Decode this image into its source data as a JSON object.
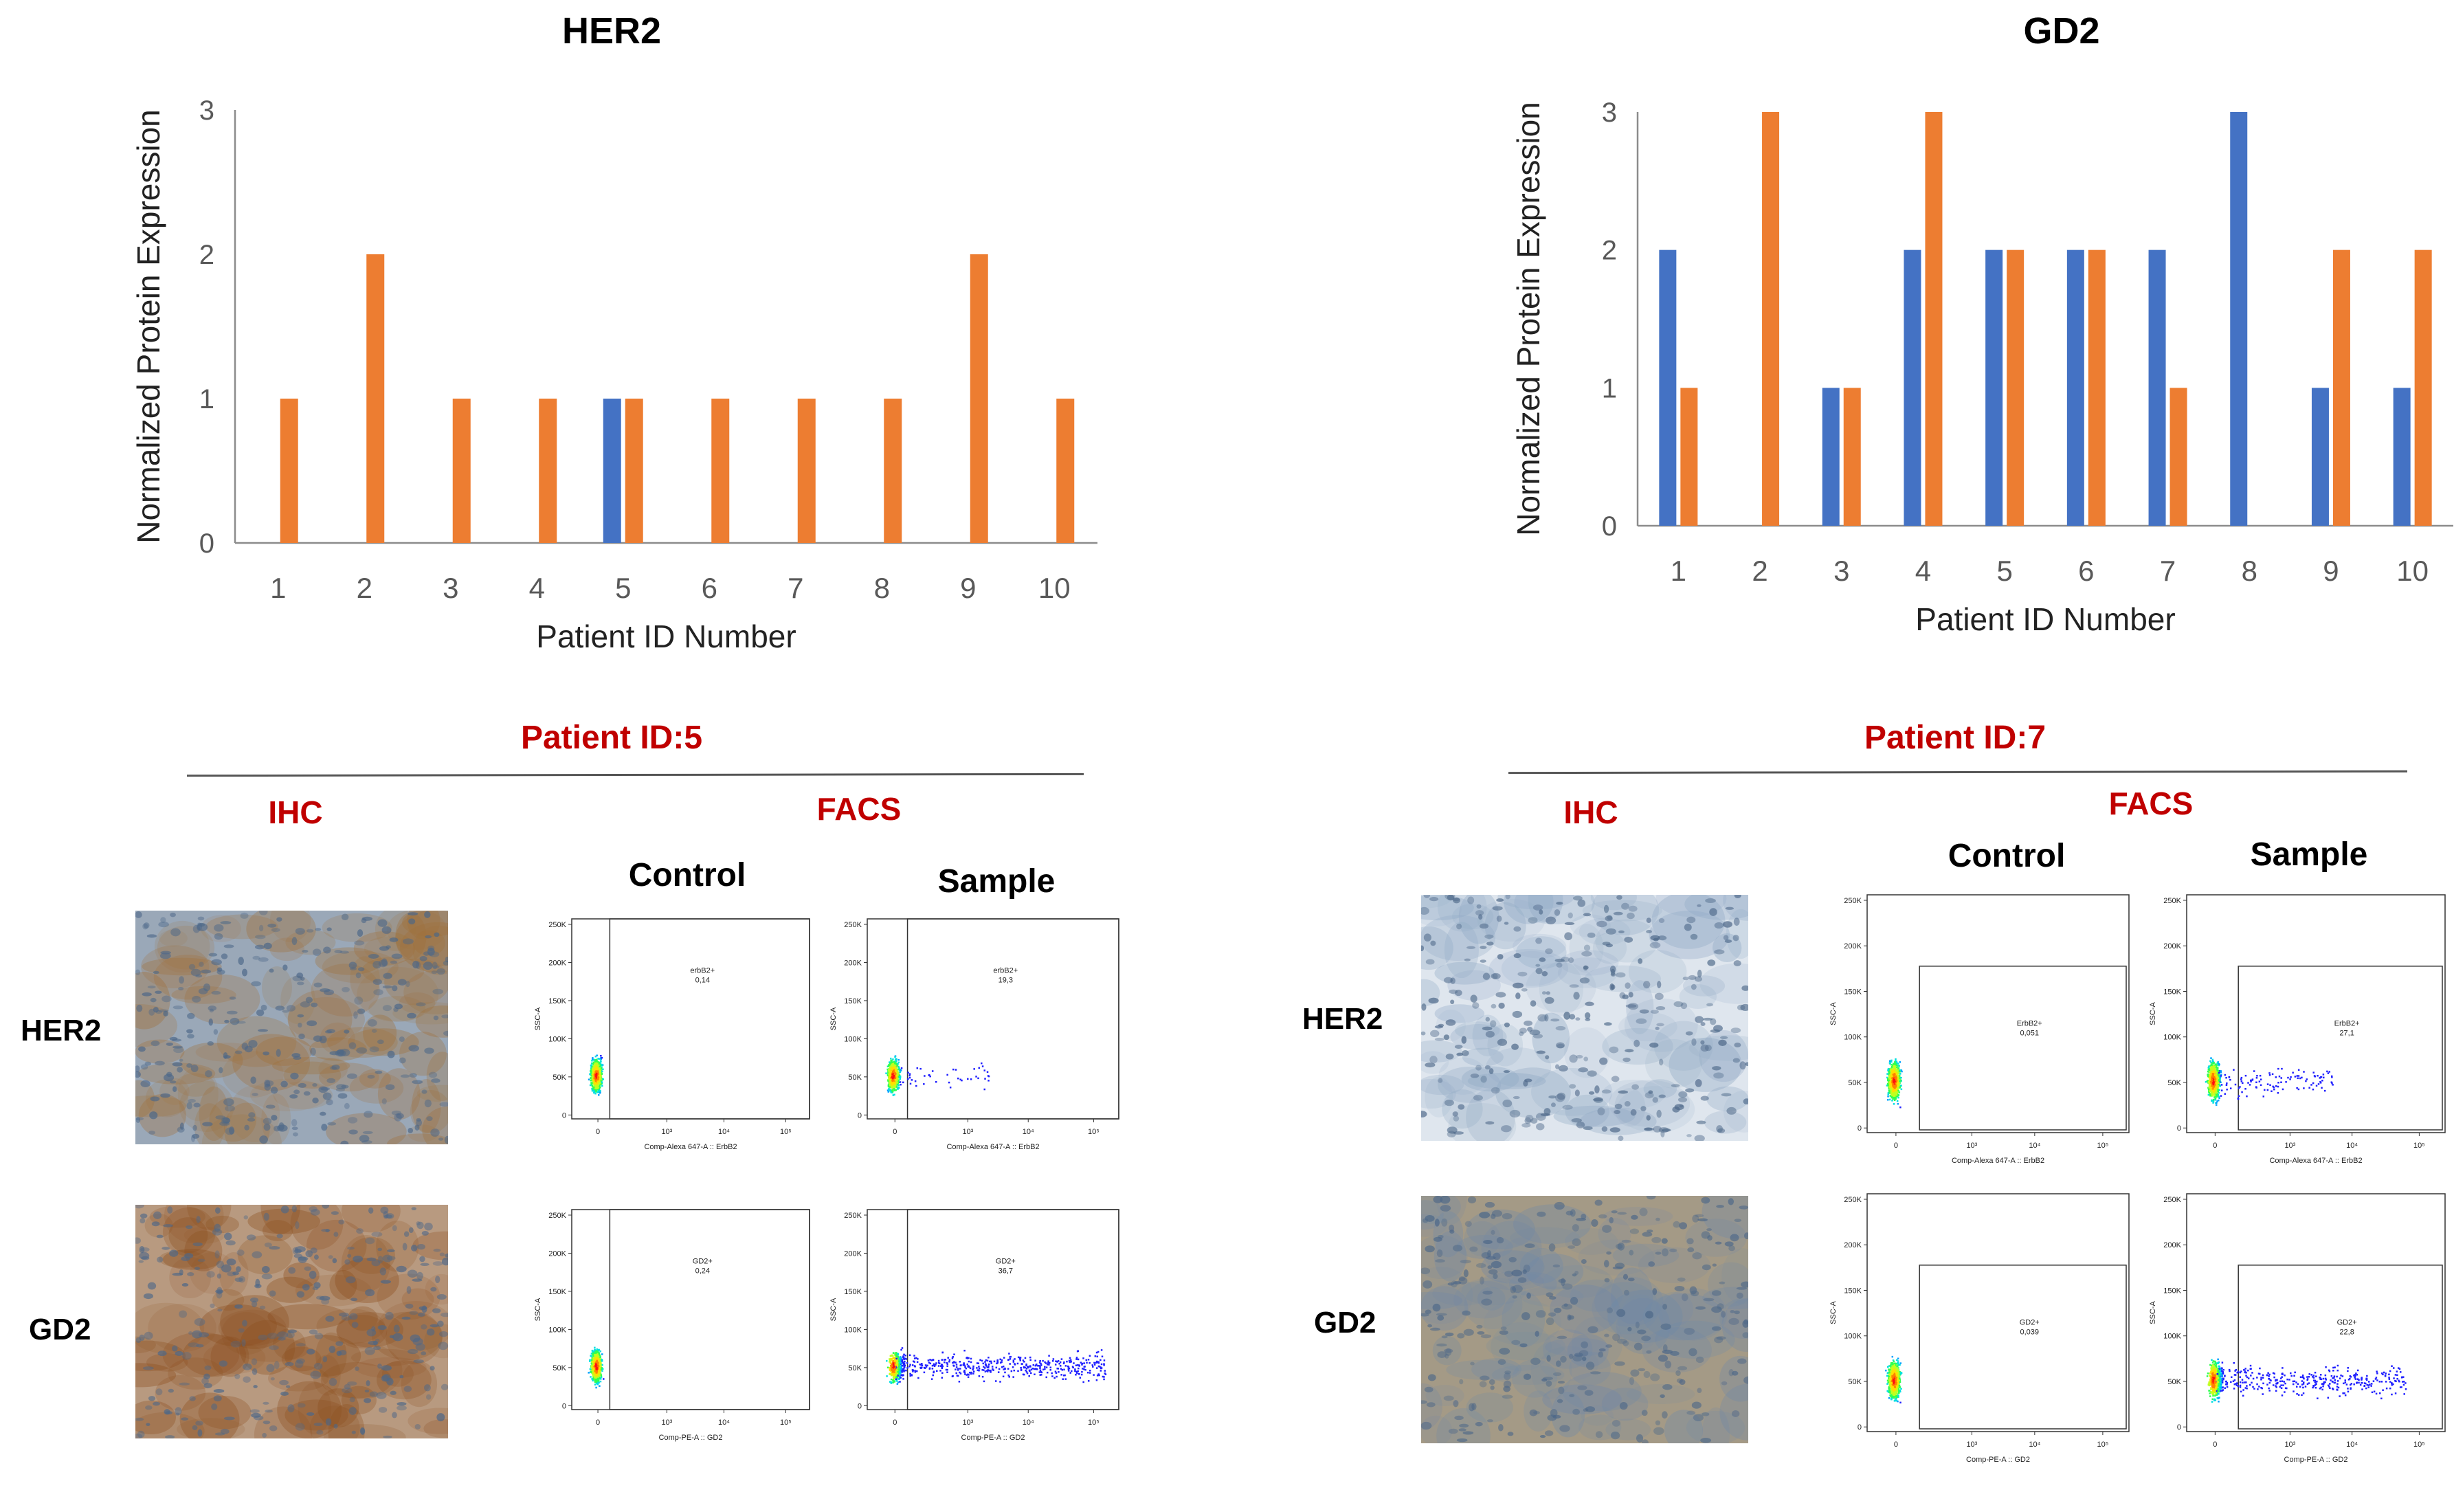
{
  "colors": {
    "blue": "#4472c4",
    "orange": "#ed7d31",
    "red": "#c00000",
    "axis": "#8c8c8c"
  },
  "chart_data": [
    {
      "type": "bar",
      "title": "HER2",
      "xlabel": "Patient ID Number",
      "ylabel": "Normalized Protein Expression",
      "categories": [
        "1",
        "2",
        "3",
        "4",
        "5",
        "6",
        "7",
        "8",
        "9",
        "10"
      ],
      "yticks": [
        "0",
        "1",
        "2",
        "3"
      ],
      "ylim": [
        0,
        3
      ],
      "series": [
        {
          "name": "series-blue",
          "color": "#4472c4",
          "values": [
            0,
            0,
            0,
            0,
            1,
            0,
            0,
            0,
            0,
            0
          ]
        },
        {
          "name": "series-orange",
          "color": "#ed7d31",
          "values": [
            1,
            2,
            1,
            1,
            1,
            1,
            1,
            1,
            2,
            1
          ]
        }
      ]
    },
    {
      "type": "bar",
      "title": "GD2",
      "xlabel": "Patient ID Number",
      "ylabel": "Normalized Protein Expression",
      "categories": [
        "1",
        "2",
        "3",
        "4",
        "5",
        "6",
        "7",
        "8",
        "9",
        "10"
      ],
      "yticks": [
        "0",
        "1",
        "2",
        "3"
      ],
      "ylim": [
        0,
        3
      ],
      "series": [
        {
          "name": "series-blue",
          "color": "#4472c4",
          "values": [
            2,
            0,
            1,
            2,
            2,
            2,
            2,
            3,
            1,
            1
          ]
        },
        {
          "name": "series-orange",
          "color": "#ed7d31",
          "values": [
            1,
            3,
            1,
            3,
            2,
            2,
            1,
            0,
            2,
            2
          ]
        }
      ]
    }
  ],
  "panels": {
    "left": {
      "patient": "Patient ID:5",
      "ihc_label": "IHC",
      "facs_label": "FACS",
      "control_label": "Control",
      "sample_label": "Sample",
      "row_her2": "HER2",
      "row_gd2": "GD2"
    },
    "right": {
      "patient": "Patient ID:7",
      "ihc_label": "IHC",
      "facs_label": "FACS",
      "control_label": "Control",
      "sample_label": "Sample",
      "row_her2": "HER2",
      "row_gd2": "GD2"
    }
  },
  "facs": {
    "yaxis": "SSC-A",
    "yticks": [
      "250K",
      "200K",
      "150K",
      "100K",
      "50K",
      "0"
    ],
    "xticks": [
      "0",
      "10³",
      "10⁴",
      "10⁵"
    ],
    "plots": [
      {
        "id": "p5-her2-control",
        "xaxis": "Comp-Alexa 647-A :: ErbB2",
        "gate": "erbB2+",
        "pct": "0,14"
      },
      {
        "id": "p5-her2-sample",
        "xaxis": "Comp-Alexa 647-A :: ErbB2",
        "gate": "erbB2+",
        "pct": "19,3"
      },
      {
        "id": "p5-gd2-control",
        "xaxis": "Comp-PE-A :: GD2",
        "gate": "GD2+",
        "pct": "0,24"
      },
      {
        "id": "p5-gd2-sample",
        "xaxis": "Comp-PE-A :: GD2",
        "gate": "GD2+",
        "pct": "36,7"
      },
      {
        "id": "p7-her2-control",
        "xaxis": "Comp-Alexa 647-A :: ErbB2",
        "gate": "ErbB2+",
        "pct": "0,051"
      },
      {
        "id": "p7-her2-sample",
        "xaxis": "Comp-Alexa 647-A :: ErbB2",
        "gate": "ErbB2+",
        "pct": "27,1"
      },
      {
        "id": "p7-gd2-control",
        "xaxis": "Comp-PE-A :: GD2",
        "gate": "GD2+",
        "pct": "0,039"
      },
      {
        "id": "p7-gd2-sample",
        "xaxis": "Comp-PE-A :: GD2",
        "gate": "GD2+",
        "pct": "22,8"
      }
    ]
  },
  "ihc": [
    {
      "id": "p5-her2",
      "tone": "#9aa8b8",
      "stain": "#a0703a"
    },
    {
      "id": "p5-gd2",
      "tone": "#b89a80",
      "stain": "#8c4f1e"
    },
    {
      "id": "p7-her2",
      "tone": "#dfe6ee",
      "stain": "#8fa8c4"
    },
    {
      "id": "p7-gd2",
      "tone": "#a49a86",
      "stain": "#6f88a8"
    }
  ]
}
